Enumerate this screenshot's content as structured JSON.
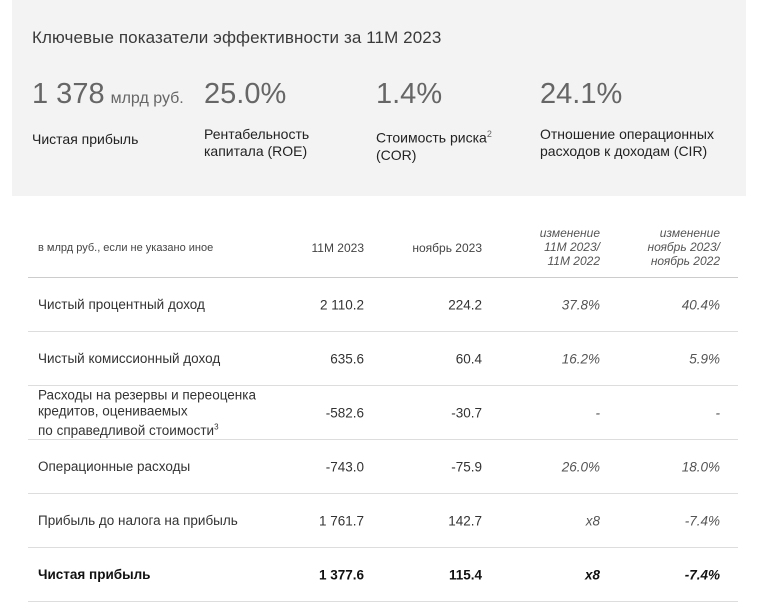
{
  "panel": {
    "title": "Ключевые показатели эффективности за 11М 2023",
    "kpis": [
      {
        "value": "1 378",
        "unit": "млрд руб.",
        "label": "Чистая прибыль"
      },
      {
        "value": "25.0%",
        "label_line1": "Рентабельность",
        "label_line2": "капитала (ROE)"
      },
      {
        "value": "1.4%",
        "label_line1": "Стоимость риска",
        "sup": "2",
        "label_line2": "(COR)"
      },
      {
        "value": "24.1%",
        "label_line1": "Отношение операционных",
        "label_line2": "расходов к доходам (CIR)"
      }
    ]
  },
  "table": {
    "headers": {
      "label": "в млрд руб., если не указано иное",
      "col1": "11М 2023",
      "col2": "ноябрь 2023",
      "col3_line1": "изменение",
      "col3_line2": "11М 2023/",
      "col3_line3": "11М 2022",
      "col4_line1": "изменение",
      "col4_line2": "ноябрь 2023/",
      "col4_line3": "ноябрь 2022"
    },
    "rows": [
      {
        "label": "Чистый процентный доход",
        "v1": "2 110.2",
        "v2": "224.2",
        "v3": "37.8%",
        "v4": "40.4%"
      },
      {
        "label": "Чистый комиссионный доход",
        "v1": "635.6",
        "v2": "60.4",
        "v3": "16.2%",
        "v4": "5.9%"
      },
      {
        "label_line1": "Расходы на резервы и переоценка",
        "label_line2": "кредитов, оцениваемых",
        "label_line3": "по справедливой стоимости",
        "sup": "3",
        "v1": "-582.6",
        "v2": "-30.7",
        "v3": "-",
        "v4": "-"
      },
      {
        "label": "Операционные расходы",
        "v1": "-743.0",
        "v2": "-75.9",
        "v3": "26.0%",
        "v4": "18.0%"
      },
      {
        "label": "Прибыль до налога на прибыль",
        "v1": "1 761.7",
        "v2": "142.7",
        "v3": "x8",
        "v4": "-7.4%"
      },
      {
        "label": "Чистая прибыль",
        "v1": "1 377.6",
        "v2": "115.4",
        "v3": "x8",
        "v4": "-7.4%"
      }
    ]
  }
}
